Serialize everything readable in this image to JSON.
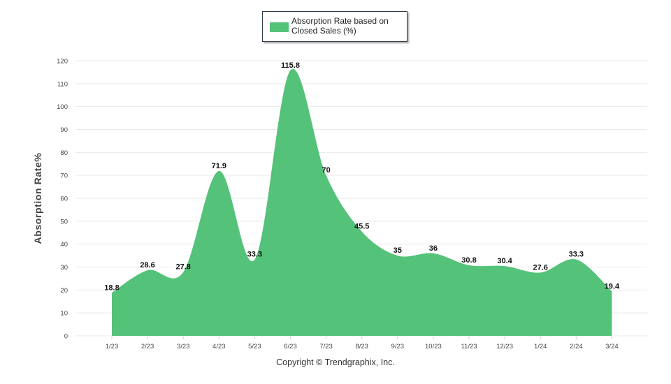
{
  "legend": {
    "label": "Absorption Rate based on Closed Sales (%)"
  },
  "footer": {
    "copyright": "Copyright © Trendgraphix, Inc."
  },
  "chart_data": {
    "type": "area",
    "title": "",
    "xlabel": "",
    "ylabel": "Absorption Rate%",
    "categories": [
      "1/23",
      "2/23",
      "3/23",
      "4/23",
      "5/23",
      "6/23",
      "7/23",
      "8/23",
      "9/23",
      "10/23",
      "11/23",
      "12/23",
      "1/24",
      "2/24",
      "3/24"
    ],
    "series": [
      {
        "name": "Absorption Rate based on Closed Sales (%)",
        "values": [
          18.8,
          28.6,
          27.8,
          71.9,
          33.3,
          115.8,
          70,
          45.5,
          35,
          36,
          30.8,
          30.4,
          27.6,
          33.3,
          19.4
        ]
      }
    ],
    "ylim": [
      0,
      120
    ],
    "yticks": [
      0,
      10,
      20,
      30,
      40,
      50,
      60,
      70,
      80,
      90,
      100,
      110,
      120
    ],
    "grid": true,
    "legend_position": "top-center",
    "colors": {
      "area": "#55c27a",
      "grid": "#e9e9e9"
    }
  }
}
